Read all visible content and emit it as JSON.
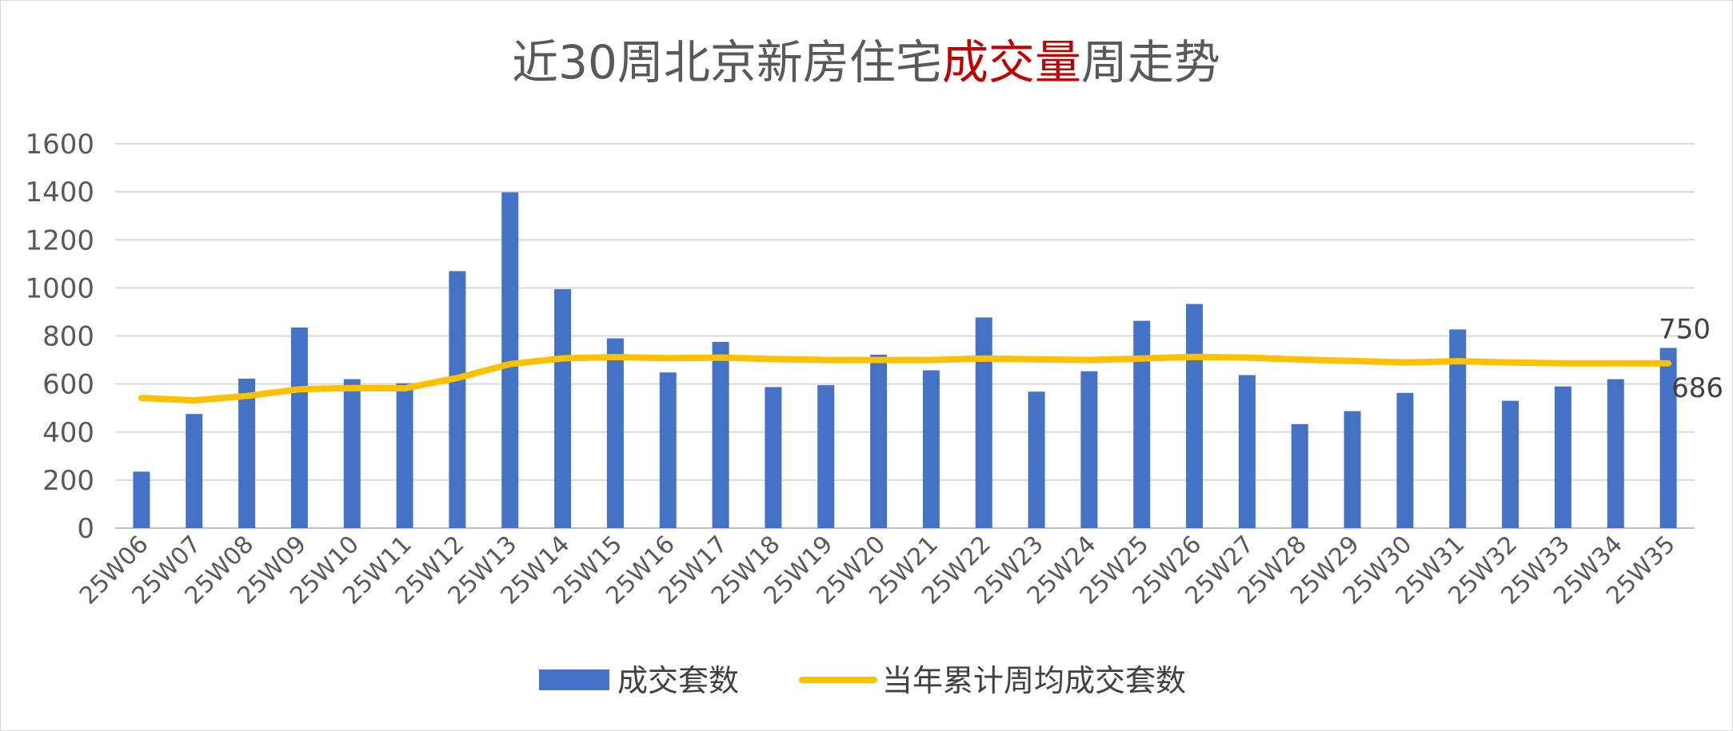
{
  "chart_data": {
    "type": "bar",
    "title_segments": [
      {
        "text": "近30周北京新房住宅",
        "color": "#595959"
      },
      {
        "text": "成交量",
        "color": "#c00000"
      },
      {
        "text": "周走势",
        "color": "#595959"
      }
    ],
    "categories": [
      "25W06",
      "25W07",
      "25W08",
      "25W09",
      "25W10",
      "25W11",
      "25W12",
      "25W13",
      "25W14",
      "25W15",
      "25W16",
      "25W17",
      "25W18",
      "25W19",
      "25W20",
      "25W21",
      "25W22",
      "25W23",
      "25W24",
      "25W25",
      "25W26",
      "25W27",
      "25W28",
      "25W29",
      "25W30",
      "25W31",
      "25W32",
      "25W33",
      "25W34",
      "25W35"
    ],
    "series": [
      {
        "name": "成交套数",
        "kind": "bar",
        "color": "#4472c4",
        "values": [
          235,
          475,
          622,
          835,
          620,
          603,
          1070,
          1398,
          995,
          790,
          648,
          775,
          587,
          595,
          722,
          657,
          877,
          568,
          653,
          863,
          933,
          637,
          433,
          487,
          563,
          827,
          530,
          590,
          620,
          750
        ]
      },
      {
        "name": "当年累计周均成交套数",
        "kind": "line",
        "color": "#ffc000",
        "values": [
          542,
          532,
          550,
          578,
          583,
          582,
          625,
          683,
          707,
          712,
          708,
          710,
          704,
          700,
          700,
          700,
          706,
          703,
          700,
          706,
          713,
          710,
          702,
          696,
          690,
          695,
          690,
          686,
          686,
          686
        ]
      }
    ],
    "data_labels": [
      {
        "series": 0,
        "index": 29,
        "text": "750"
      },
      {
        "series": 1,
        "index": 29,
        "text": "686"
      }
    ],
    "ylim": [
      0,
      1600
    ],
    "yticks": [
      0,
      200,
      400,
      600,
      800,
      1000,
      1200,
      1400,
      1600
    ],
    "grid": true,
    "legend_position": "bottom",
    "xlabel": "",
    "ylabel": ""
  }
}
